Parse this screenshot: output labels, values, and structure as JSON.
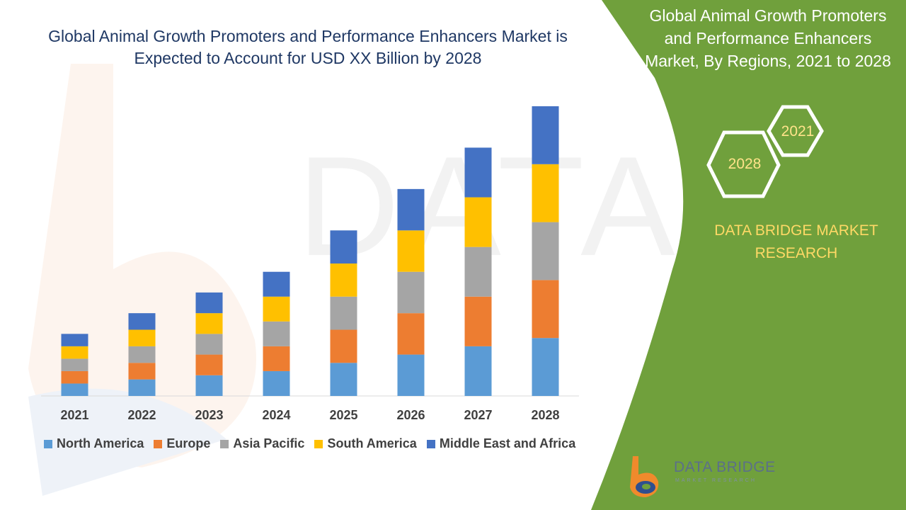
{
  "title": "Global Animal Growth Promoters and Performance Enhancers Market is Expected to Account for USD XX Billion by 2028",
  "panel": {
    "title": "Global Animal Growth Promoters and Performance Enhancers Market, By Regions, 2021 to 2028",
    "hex_top": "2021",
    "hex_bottom": "2028",
    "brand": "DATA BRIDGE MARKET RESEARCH",
    "logo_text": "DATA BRIDGE",
    "logo_sub": "MARKET RESEARCH",
    "logo_icon": "data-bridge-logo-icon",
    "panel_color": "#70a03c"
  },
  "chart_data": {
    "type": "bar",
    "stacked": true,
    "categories": [
      "2021",
      "2022",
      "2023",
      "2024",
      "2025",
      "2026",
      "2027",
      "2028"
    ],
    "series": [
      {
        "name": "North America",
        "color": "#5b9bd5",
        "values": [
          1.5,
          2.0,
          2.5,
          3.0,
          4.0,
          5.0,
          6.0,
          7.0
        ]
      },
      {
        "name": "Europe",
        "color": "#ed7d31",
        "values": [
          1.5,
          2.0,
          2.5,
          3.0,
          4.0,
          5.0,
          6.0,
          7.0
        ]
      },
      {
        "name": "Asia Pacific",
        "color": "#a5a5a5",
        "values": [
          1.5,
          2.0,
          2.5,
          3.0,
          4.0,
          5.0,
          6.0,
          7.0
        ]
      },
      {
        "name": "South America",
        "color": "#ffc000",
        "values": [
          1.5,
          2.0,
          2.5,
          3.0,
          4.0,
          5.0,
          6.0,
          7.0
        ]
      },
      {
        "name": "Middle East and Africa",
        "color": "#4472c4",
        "values": [
          1.5,
          2.0,
          2.5,
          3.0,
          4.0,
          5.0,
          6.0,
          7.0
        ]
      }
    ],
    "ylim": [
      0,
      35
    ],
    "grid": false,
    "legend": "bottom"
  }
}
